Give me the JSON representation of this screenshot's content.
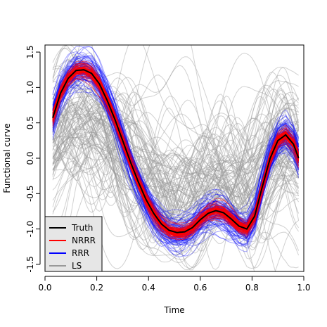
{
  "chart_data": {
    "type": "line",
    "title": "",
    "xlabel": "Time",
    "ylabel": "Functional curve",
    "xlim": [
      0.0,
      1.0
    ],
    "ylim": [
      -1.6,
      1.6
    ],
    "x_ticks": [
      0.0,
      0.2,
      0.4,
      0.6,
      0.8,
      1.0
    ],
    "x_tick_labels": [
      "0.0",
      "0.2",
      "0.4",
      "0.6",
      "0.8",
      "1.0"
    ],
    "y_ticks": [
      -1.5,
      -1.0,
      -0.5,
      0.0,
      0.5,
      1.0,
      1.5
    ],
    "y_tick_labels": [
      "-1.5",
      "-1.0",
      "-0.5",
      "0.0",
      "0.5",
      "1.0",
      "1.5"
    ],
    "grid": false,
    "legend": {
      "position": "bottom-left",
      "entries": [
        {
          "label": "Truth",
          "color": "#000000"
        },
        {
          "label": "NRRR",
          "color": "#ff0000"
        },
        {
          "label": "RRR",
          "color": "#0000ff"
        },
        {
          "label": "LS",
          "color": "#999999"
        }
      ]
    },
    "series": [
      {
        "name": "Truth",
        "color": "#000000",
        "x": [
          0.03,
          0.06,
          0.09,
          0.12,
          0.15,
          0.18,
          0.21,
          0.24,
          0.27,
          0.3,
          0.33,
          0.36,
          0.39,
          0.42,
          0.45,
          0.48,
          0.51,
          0.54,
          0.57,
          0.6,
          0.63,
          0.66,
          0.69,
          0.72,
          0.75,
          0.78,
          0.81,
          0.84,
          0.87,
          0.9,
          0.93,
          0.96,
          0.98
        ],
        "y": [
          0.57,
          0.92,
          1.13,
          1.24,
          1.25,
          1.2,
          1.05,
          0.82,
          0.55,
          0.25,
          -0.05,
          -0.33,
          -0.58,
          -0.78,
          -0.93,
          -1.02,
          -1.05,
          -1.04,
          -0.98,
          -0.87,
          -0.78,
          -0.74,
          -0.77,
          -0.86,
          -0.96,
          -1.0,
          -0.82,
          -0.4,
          0.0,
          0.25,
          0.33,
          0.2,
          0.0
        ]
      }
    ],
    "ensembles": [
      {
        "name": "LS",
        "color": "#999999",
        "opacity": 0.45,
        "count": 100,
        "spread": 0.55
      },
      {
        "name": "RRR",
        "color": "#0000ff",
        "opacity": 0.35,
        "count": 100,
        "spread": 0.14
      },
      {
        "name": "NRRR",
        "color": "#ff0000",
        "opacity": 0.45,
        "count": 100,
        "spread": 0.05
      }
    ]
  }
}
